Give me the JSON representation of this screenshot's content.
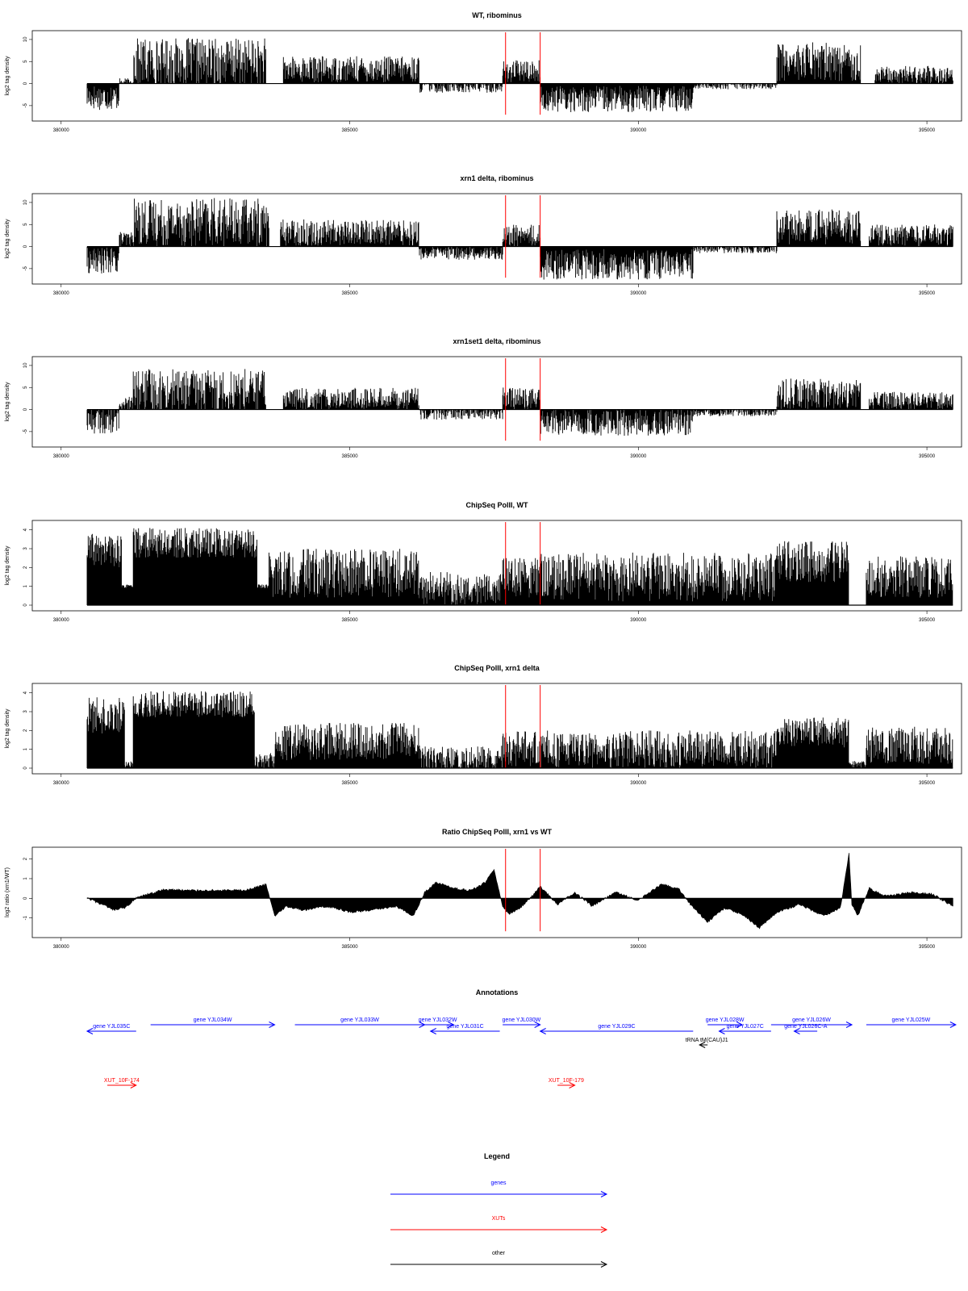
{
  "colors": {
    "gene": "#0000ff",
    "xut": "#ff0000",
    "other": "#000000",
    "marker": "#ff0000",
    "signal": "#000000"
  },
  "chart_data": [
    {
      "type": "bar",
      "title": "WT, ribominus",
      "ylabel": "log2 tag density",
      "xlim": [
        379500,
        395600
      ],
      "ylim": [
        -8.5,
        12
      ],
      "x_ticks": [
        380000,
        385000,
        390000,
        395000
      ],
      "y_ticks": [
        -5,
        0,
        5,
        10
      ],
      "y_tick_labels": [
        "-5",
        "0",
        "5",
        "10"
      ],
      "markers_x": [
        387700,
        388300
      ],
      "segments": [
        {
          "from": 380450,
          "to": 381000,
          "level": -3,
          "spread": 3
        },
        {
          "from": 381000,
          "to": 381250,
          "level": 0.2,
          "spread": 1
        },
        {
          "from": 381250,
          "to": 383550,
          "level": 4.8,
          "spread": 5.5
        },
        {
          "from": 383850,
          "to": 386200,
          "level": 3.2,
          "spread": 3
        },
        {
          "from": 386200,
          "to": 387650,
          "level": -0.6,
          "spread": 1.5
        },
        {
          "from": 387650,
          "to": 388300,
          "level": 2.8,
          "spread": 2.5
        },
        {
          "from": 388300,
          "to": 390950,
          "level": -3.5,
          "spread": 3
        },
        {
          "from": 390950,
          "to": 392400,
          "level": -0.3,
          "spread": 1
        },
        {
          "from": 392400,
          "to": 393850,
          "level": 5,
          "spread": 4.5
        },
        {
          "from": 394100,
          "to": 395450,
          "level": 2,
          "spread": 2
        }
      ]
    },
    {
      "type": "bar",
      "title": "xrn1 delta, ribominus",
      "ylabel": "log2 tag density",
      "xlim": [
        379500,
        395600
      ],
      "ylim": [
        -8.5,
        12
      ],
      "x_ticks": [
        380000,
        385000,
        390000,
        395000
      ],
      "y_ticks": [
        -5,
        0,
        5,
        10
      ],
      "y_tick_labels": [
        "-5",
        "0",
        "5",
        "10"
      ],
      "markers_x": [
        387700,
        388300
      ],
      "segments": [
        {
          "from": 380450,
          "to": 381000,
          "level": -3.2,
          "spread": 3
        },
        {
          "from": 381000,
          "to": 381250,
          "level": 1.5,
          "spread": 2
        },
        {
          "from": 381250,
          "to": 383600,
          "level": 5.5,
          "spread": 5.5
        },
        {
          "from": 383800,
          "to": 386200,
          "level": 3.2,
          "spread": 3
        },
        {
          "from": 386200,
          "to": 387650,
          "level": -1.5,
          "spread": 1.5
        },
        {
          "from": 387650,
          "to": 388300,
          "level": 2.5,
          "spread": 2.5
        },
        {
          "from": 388300,
          "to": 390950,
          "level": -4,
          "spread": 3.5
        },
        {
          "from": 390950,
          "to": 392400,
          "level": -0.5,
          "spread": 1
        },
        {
          "from": 392400,
          "to": 393850,
          "level": 4.5,
          "spread": 4
        },
        {
          "from": 394000,
          "to": 395450,
          "level": 2.5,
          "spread": 2.5
        }
      ]
    },
    {
      "type": "bar",
      "title": "xrn1set1 delta, ribominus",
      "ylabel": "log2 tag density",
      "xlim": [
        379500,
        395600
      ],
      "ylim": [
        -8.5,
        12
      ],
      "x_ticks": [
        380000,
        385000,
        390000,
        395000
      ],
      "y_ticks": [
        -5,
        0,
        5,
        10
      ],
      "y_tick_labels": [
        "-5",
        "0",
        "5",
        "10"
      ],
      "markers_x": [
        387700,
        388300
      ],
      "segments": [
        {
          "from": 380450,
          "to": 381000,
          "level": -2.5,
          "spread": 3
        },
        {
          "from": 381000,
          "to": 381250,
          "level": 1,
          "spread": 2
        },
        {
          "from": 381250,
          "to": 383550,
          "level": 4.2,
          "spread": 5
        },
        {
          "from": 383850,
          "to": 386200,
          "level": 2.5,
          "spread": 2.5
        },
        {
          "from": 386200,
          "to": 387650,
          "level": -0.8,
          "spread": 1.5
        },
        {
          "from": 387650,
          "to": 388300,
          "level": 2.5,
          "spread": 2.5
        },
        {
          "from": 388300,
          "to": 390950,
          "level": -3,
          "spread": 3
        },
        {
          "from": 390950,
          "to": 392400,
          "level": -0.5,
          "spread": 1
        },
        {
          "from": 392400,
          "to": 393850,
          "level": 3.5,
          "spread": 3.5
        },
        {
          "from": 394000,
          "to": 395450,
          "level": 2,
          "spread": 2
        }
      ]
    },
    {
      "type": "bar",
      "title": "ChipSeq PolII, WT",
      "ylabel": "log2 tag density",
      "xlim": [
        379500,
        395600
      ],
      "ylim": [
        -0.3,
        4.5
      ],
      "x_ticks": [
        380000,
        385000,
        390000,
        395000
      ],
      "y_ticks": [
        0,
        1,
        2,
        3,
        4
      ],
      "y_tick_labels": [
        "0",
        "1",
        "2",
        "3",
        "4"
      ],
      "markers_x": [
        387700,
        388300
      ],
      "segments": [
        {
          "from": 380450,
          "to": 381050,
          "level": 2.9,
          "spread": 0.9
        },
        {
          "from": 381050,
          "to": 381250,
          "level": 1,
          "spread": 0.1
        },
        {
          "from": 381250,
          "to": 383400,
          "level": 3.3,
          "spread": 0.8
        },
        {
          "from": 383400,
          "to": 383600,
          "level": 1,
          "spread": 0.1
        },
        {
          "from": 383600,
          "to": 386200,
          "level": 1.7,
          "spread": 1.3
        },
        {
          "from": 386200,
          "to": 387650,
          "level": 0.9,
          "spread": 0.9
        },
        {
          "from": 387650,
          "to": 388300,
          "level": 1.5,
          "spread": 1.1
        },
        {
          "from": 388300,
          "to": 392400,
          "level": 1.5,
          "spread": 1.3
        },
        {
          "from": 392400,
          "to": 393650,
          "level": 2.3,
          "spread": 1.1
        },
        {
          "from": 393650,
          "to": 393950,
          "level": 0,
          "spread": 0
        },
        {
          "from": 393950,
          "to": 395450,
          "level": 1.5,
          "spread": 1.1
        }
      ]
    },
    {
      "type": "bar",
      "title": "ChipSeq PolII, xrn1 delta",
      "ylabel": "log2 tag density",
      "xlim": [
        379500,
        395600
      ],
      "ylim": [
        -0.3,
        4.5
      ],
      "x_ticks": [
        380000,
        385000,
        390000,
        395000
      ],
      "y_ticks": [
        0,
        1,
        2,
        3,
        4
      ],
      "y_tick_labels": [
        "0",
        "1",
        "2",
        "3",
        "4"
      ],
      "markers_x": [
        387700,
        388300
      ],
      "segments": [
        {
          "from": 380450,
          "to": 381100,
          "level": 2.8,
          "spread": 1
        },
        {
          "from": 381100,
          "to": 381250,
          "level": 0.2,
          "spread": 0.2
        },
        {
          "from": 381250,
          "to": 383350,
          "level": 3.4,
          "spread": 0.7
        },
        {
          "from": 383350,
          "to": 383700,
          "level": 0.4,
          "spread": 0.4
        },
        {
          "from": 383700,
          "to": 386200,
          "level": 1.4,
          "spread": 1
        },
        {
          "from": 386200,
          "to": 387650,
          "level": 0.5,
          "spread": 0.7
        },
        {
          "from": 387650,
          "to": 388300,
          "level": 1,
          "spread": 1
        },
        {
          "from": 388300,
          "to": 392400,
          "level": 1,
          "spread": 1
        },
        {
          "from": 392400,
          "to": 393650,
          "level": 1.9,
          "spread": 0.8
        },
        {
          "from": 393650,
          "to": 393950,
          "level": 0.2,
          "spread": 0.2
        },
        {
          "from": 393950,
          "to": 395450,
          "level": 1.2,
          "spread": 1
        }
      ]
    },
    {
      "type": "area",
      "title": "Ratio ChipSeq PolII, xrn1 vs WT",
      "ylabel": "log2 ratio (xrn1/WT)",
      "xlim": [
        379500,
        395600
      ],
      "ylim": [
        -2,
        2.6
      ],
      "x_ticks": [
        380000,
        385000,
        390000,
        395000
      ],
      "y_ticks": [
        -1,
        0,
        1,
        2
      ],
      "y_tick_labels": [
        "-1",
        "0",
        "1",
        "2"
      ],
      "markers_x": [
        387700,
        388300
      ],
      "x": [
        380450,
        380700,
        380900,
        381100,
        381300,
        381500,
        381800,
        382200,
        382700,
        383200,
        383550,
        383700,
        383900,
        384200,
        384600,
        385000,
        385400,
        385800,
        386100,
        386300,
        386500,
        386800,
        387100,
        387350,
        387500,
        387650,
        387750,
        387900,
        388100,
        388300,
        388600,
        388900,
        389200,
        389600,
        390000,
        390400,
        390700,
        390900,
        391200,
        391500,
        391800,
        392100,
        392400,
        392800,
        393200,
        393500,
        393650,
        393700,
        393800,
        394000,
        394300,
        394700,
        395100,
        395450
      ],
      "y": [
        0,
        -0.3,
        -0.6,
        -0.5,
        0,
        0.2,
        0.45,
        0.4,
        0.4,
        0.4,
        0.7,
        -0.9,
        -0.4,
        -0.6,
        -0.4,
        -0.7,
        -0.6,
        -0.4,
        -0.9,
        0.3,
        0.8,
        0.5,
        0.4,
        0.8,
        1.5,
        -0.4,
        -0.8,
        -0.6,
        -0.1,
        0.6,
        -0.3,
        0.3,
        -0.4,
        0.3,
        -0.1,
        0.7,
        0.5,
        -0.3,
        -1.2,
        -0.5,
        -0.8,
        -1.5,
        -0.7,
        -0.3,
        -0.9,
        -0.5,
        2.3,
        -0.3,
        -0.9,
        0.5,
        0.1,
        0.3,
        0.2,
        -0.4
      ]
    }
  ],
  "annotations": {
    "title": "Annotations",
    "genes": [
      {
        "label": "gene YJL035C",
        "from": 380450,
        "to": 381300,
        "strand": "-",
        "row": 1
      },
      {
        "label": "gene YJL034W",
        "from": 381550,
        "to": 383700,
        "strand": "+",
        "row": 0
      },
      {
        "label": "gene YJL033W",
        "from": 384050,
        "to": 386300,
        "strand": "+",
        "row": 0
      },
      {
        "label": "gene YJL032W",
        "from": 386250,
        "to": 386800,
        "strand": "+",
        "row": 0
      },
      {
        "label": "gene YJL031C",
        "from": 386400,
        "to": 387600,
        "strand": "-",
        "row": 1
      },
      {
        "label": "gene YJL030W",
        "from": 387650,
        "to": 388300,
        "strand": "+",
        "row": 0
      },
      {
        "label": "gene YJL029C",
        "from": 388300,
        "to": 390950,
        "strand": "-",
        "row": 1
      },
      {
        "label": "gene YJL028W",
        "from": 391200,
        "to": 391800,
        "strand": "+",
        "row": 0
      },
      {
        "label": "gene YJL027C",
        "from": 391400,
        "to": 392300,
        "strand": "-",
        "row": 1
      },
      {
        "label": "gene YJL026W",
        "from": 392300,
        "to": 393700,
        "strand": "+",
        "row": 0
      },
      {
        "label": "gene YJL026C-A",
        "from": 392700,
        "to": 393100,
        "strand": "-",
        "row": 1
      },
      {
        "label": "gene YJL025W",
        "from": 393950,
        "to": 395500,
        "strand": "+",
        "row": 0
      }
    ],
    "other": [
      {
        "label": "tRNA tM(CAU)J1",
        "from": 391060,
        "to": 391200,
        "strand": "-",
        "row": 2
      }
    ],
    "xuts": [
      {
        "label": "XUT_10F-174",
        "from": 380800,
        "to": 381300,
        "strand": "+",
        "row": 3
      },
      {
        "label": "XUT_10F-179",
        "from": 388600,
        "to": 388900,
        "strand": "+",
        "row": 3
      }
    ]
  },
  "legend": {
    "title": "Legend",
    "items": [
      {
        "label": "genes",
        "type": "gene"
      },
      {
        "label": "XUTs",
        "type": "xut"
      },
      {
        "label": "other",
        "type": "other"
      }
    ]
  }
}
